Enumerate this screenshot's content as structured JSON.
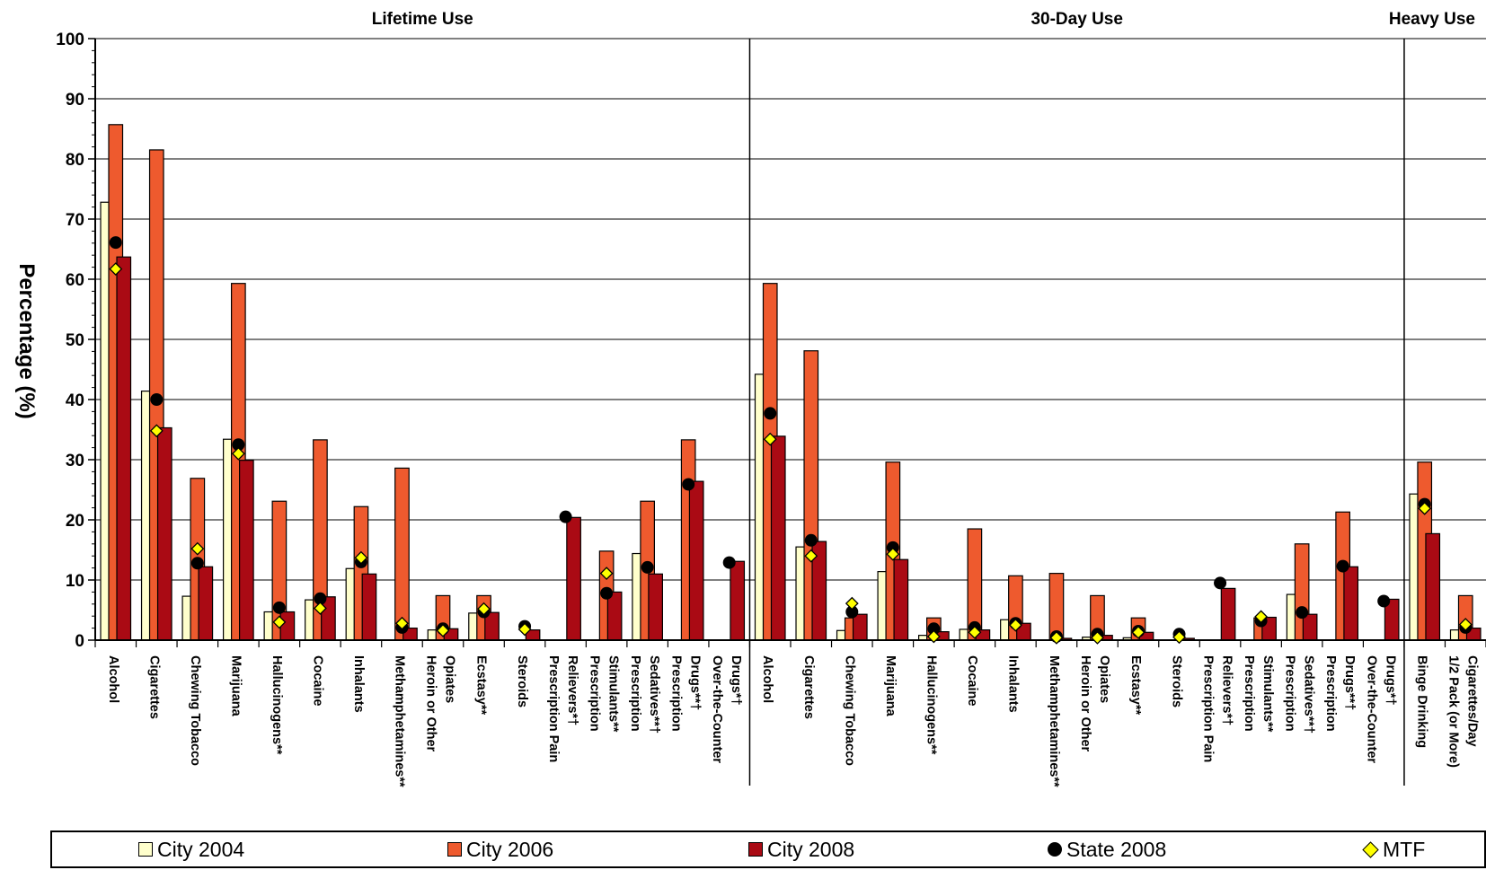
{
  "chart_data": {
    "type": "bar",
    "ylabel": "Percentage (%)",
    "ylim": [
      0,
      100
    ],
    "yticks": [
      0,
      10,
      20,
      30,
      40,
      50,
      60,
      70,
      80,
      90,
      100
    ],
    "grid": true,
    "legend_placement": "bottom",
    "groups": [
      {
        "label": "Lifetime Use",
        "start": 0,
        "count": 16
      },
      {
        "label": "30-Day Use",
        "start": 16,
        "count": 16
      },
      {
        "label": "Heavy Use",
        "start": 32,
        "count": 2
      }
    ],
    "categories": [
      [
        "Alcohol"
      ],
      [
        "Cigarettes"
      ],
      [
        "Chewing Tobacco"
      ],
      [
        "Marijuana"
      ],
      [
        "Hallucinogens**"
      ],
      [
        "Cocaine"
      ],
      [
        "Inhalants"
      ],
      [
        "Methamphetamines**"
      ],
      [
        "Heroin or Other",
        "Opiates"
      ],
      [
        "Ecstasy**"
      ],
      [
        "Steroids"
      ],
      [
        "Prescription Pain",
        "Relievers*†"
      ],
      [
        "Prescription",
        "Stimulants**"
      ],
      [
        "Prescription",
        "Sedatives**†"
      ],
      [
        "Prescription",
        "Drugs**†"
      ],
      [
        "Over-the-Counter",
        "Drugs*†"
      ],
      [
        "Alcohol"
      ],
      [
        "Cigarettes"
      ],
      [
        "Chewing Tobacco"
      ],
      [
        "Marijuana"
      ],
      [
        "Hallucinogens**"
      ],
      [
        "Cocaine"
      ],
      [
        "Inhalants"
      ],
      [
        "Methamphetamines**"
      ],
      [
        "Heroin or Other",
        "Opiates"
      ],
      [
        "Ecstasy**"
      ],
      [
        "Steroids"
      ],
      [
        "Prescription Pain",
        "Relievers*†"
      ],
      [
        "Prescription",
        "Stimulants**"
      ],
      [
        "Prescription",
        "Sedatives**†"
      ],
      [
        "Prescription",
        "Drugs**†"
      ],
      [
        "Over-the-Counter",
        "Drugs*†"
      ],
      [
        "Binge Drinking"
      ],
      [
        "1/2 Pack (or More)",
        "Cigarettes/Day"
      ]
    ],
    "series": [
      {
        "name": "City 2004",
        "kind": "bar",
        "color": "#ffffcc",
        "values": [
          72.8,
          41.4,
          7.3,
          33.4,
          4.7,
          6.7,
          11.9,
          null,
          1.7,
          4.5,
          null,
          null,
          null,
          14.4,
          null,
          null,
          44.2,
          15.5,
          1.6,
          11.4,
          0.8,
          1.8,
          3.4,
          null,
          0.5,
          0.4,
          null,
          null,
          null,
          7.6,
          null,
          null,
          24.3,
          1.7
        ]
      },
      {
        "name": "City 2006",
        "kind": "bar",
        "color": "#ee5a2e",
        "values": [
          85.7,
          81.5,
          26.9,
          59.3,
          23.1,
          33.3,
          22.2,
          28.6,
          7.4,
          7.4,
          null,
          null,
          14.8,
          23.1,
          33.3,
          null,
          59.3,
          48.1,
          3.7,
          29.6,
          3.7,
          18.5,
          10.7,
          11.1,
          7.4,
          3.7,
          null,
          null,
          3.7,
          16.0,
          21.3,
          null,
          29.6,
          7.4
        ]
      },
      {
        "name": "City 2008",
        "kind": "bar",
        "color": "#aa0a14",
        "values": [
          63.7,
          35.3,
          12.2,
          29.9,
          4.7,
          7.2,
          11.0,
          2.0,
          1.9,
          4.6,
          1.7,
          20.4,
          8.0,
          11.0,
          26.4,
          13.1,
          33.9,
          16.4,
          4.3,
          13.4,
          1.4,
          1.7,
          2.8,
          0.3,
          0.8,
          1.3,
          0.3,
          8.6,
          3.8,
          4.3,
          12.2,
          6.8,
          17.7,
          2.0
        ]
      },
      {
        "name": "State 2008",
        "kind": "point",
        "marker": "circle",
        "color": "#000000",
        "values": [
          66.1,
          40.0,
          12.8,
          32.5,
          5.4,
          6.9,
          13.0,
          2.1,
          1.9,
          4.7,
          2.3,
          20.5,
          7.8,
          12.1,
          25.9,
          12.9,
          37.7,
          16.6,
          4.7,
          15.4,
          1.9,
          2.1,
          2.8,
          0.6,
          1.0,
          1.5,
          1.0,
          9.5,
          3.2,
          4.6,
          12.3,
          6.5,
          22.6,
          2.1
        ]
      },
      {
        "name": "MTF",
        "kind": "point",
        "marker": "diamond",
        "color": "#ffff00",
        "values": [
          61.7,
          34.8,
          15.2,
          31.0,
          3.0,
          5.3,
          13.7,
          2.8,
          1.6,
          5.2,
          1.8,
          null,
          11.1,
          null,
          null,
          null,
          33.4,
          14.0,
          6.1,
          14.3,
          0.6,
          1.3,
          2.5,
          0.4,
          0.4,
          1.3,
          0.5,
          null,
          3.9,
          null,
          null,
          null,
          21.9,
          2.6
        ]
      }
    ]
  }
}
